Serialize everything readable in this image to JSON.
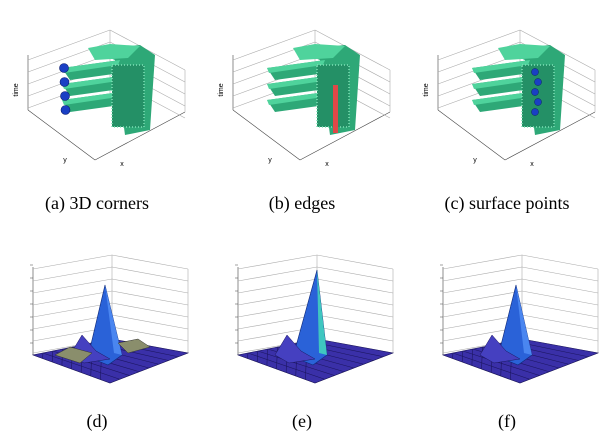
{
  "figure": {
    "panels": [
      {
        "caption": "(a) 3D corners",
        "axis_labels": {
          "z": "time",
          "y": "y",
          "x": "x"
        }
      },
      {
        "caption": "(b) edges",
        "axis_labels": {
          "z": "time",
          "y": "y",
          "x": "x"
        }
      },
      {
        "caption": "(c) surface points",
        "axis_labels": {
          "z": "time",
          "y": "y",
          "x": "x"
        }
      },
      {
        "caption": "(d)"
      },
      {
        "caption": "(e)"
      },
      {
        "caption": "(f)"
      }
    ]
  }
}
